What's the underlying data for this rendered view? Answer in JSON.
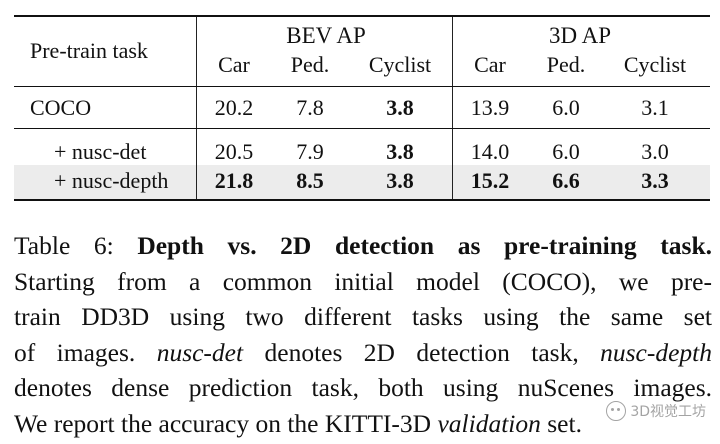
{
  "table": {
    "header": {
      "row_label": "Pre-train task",
      "group_bev": "BEV AP",
      "group_3d": "3D AP",
      "columns": [
        "Car",
        "Ped.",
        "Cyclist",
        "Car",
        "Ped.",
        "Cyclist"
      ]
    },
    "rows": [
      {
        "label": "COCO",
        "values": [
          "20.2",
          "7.8",
          "3.8",
          "13.9",
          "6.0",
          "3.1"
        ],
        "bold": [
          false,
          false,
          true,
          false,
          false,
          false
        ],
        "shaded": false
      },
      {
        "label": "+ nusc-det",
        "values": [
          "20.5",
          "7.9",
          "3.8",
          "14.0",
          "6.0",
          "3.0"
        ],
        "bold": [
          false,
          false,
          true,
          false,
          false,
          false
        ],
        "shaded": false
      },
      {
        "label": "+ nusc-depth",
        "values": [
          "21.8",
          "8.5",
          "3.8",
          "15.2",
          "6.6",
          "3.3"
        ],
        "bold": [
          true,
          true,
          true,
          true,
          true,
          true
        ],
        "shaded": true
      }
    ]
  },
  "caption": {
    "label": "Table 6:",
    "title": "Depth vs.  2D detection as pre-training task.",
    "line2": "Starting from a common initial model (COCO), we pre-",
    "line3": "train DD3D using two different tasks using the same set",
    "line4_a": "of images.",
    "line4_em": "nusc-det",
    "line4_b": "denotes 2D detection task,",
    "line4_em2": "nusc-depth",
    "line5": "denotes dense prediction task, both using nuScenes images.",
    "line6_a": "We report the accuracy on the KITTI-3D",
    "line6_em": "validation",
    "line6_b": "set."
  },
  "watermark": {
    "text": "3D视觉工坊",
    "icon": "wechat-icon"
  }
}
